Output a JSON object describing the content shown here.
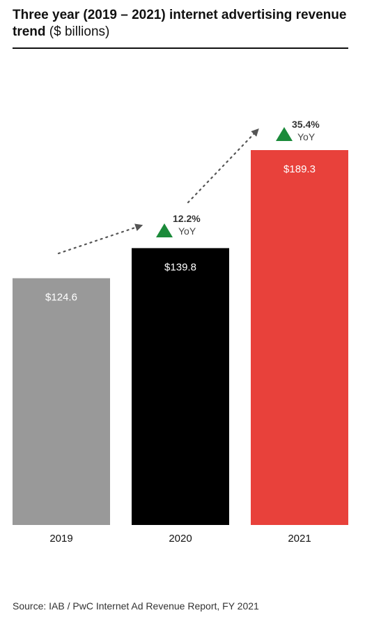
{
  "header": {
    "title_bold": "Three year (2019 – 2021) internet advertising revenue trend",
    "title_light": " ($ billions)"
  },
  "chart_data": {
    "type": "bar",
    "categories": [
      "2019",
      "2020",
      "2021"
    ],
    "values": [
      124.6,
      139.8,
      189.3
    ],
    "value_labels": [
      "$124.6",
      "$139.8",
      "$189.3"
    ],
    "colors": [
      "#999999",
      "#000000",
      "#e8413b"
    ],
    "label_colors": [
      "#ffffff",
      "#ffffff",
      "#ffffff"
    ],
    "growth": [
      {
        "pct": "12.2%",
        "unit": "YoY"
      },
      {
        "pct": "35.4%",
        "unit": "YoY"
      }
    ],
    "growth_color": "#1b8a3a",
    "title": "Three year (2019 – 2021) internet advertising revenue trend ($ billions)",
    "xlabel": "",
    "ylabel": ""
  },
  "footer": {
    "source": "Source: IAB / PwC Internet Ad Revenue Report, FY 2021"
  }
}
